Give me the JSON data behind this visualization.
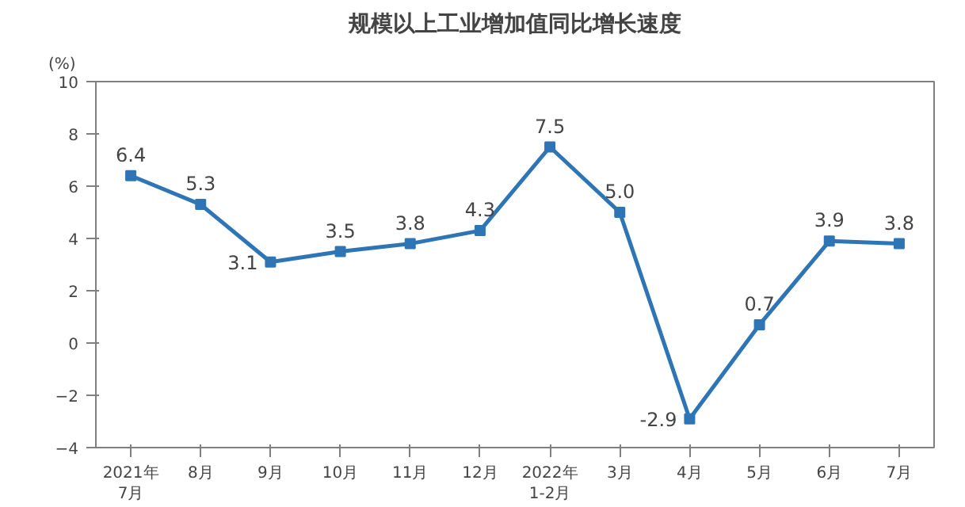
{
  "chart_data": {
    "type": "line",
    "title": "规模以上工业增加值同比增长速度",
    "ylabel": "(%)",
    "categories": [
      "2021年\n7月",
      "8月",
      "9月",
      "10月",
      "11月",
      "12月",
      "2022年\n1-2月",
      "3月",
      "4月",
      "5月",
      "6月",
      "7月"
    ],
    "series": [
      {
        "color": "#2e75b6",
        "values": [
          6.4,
          5.3,
          3.1,
          3.5,
          3.8,
          4.3,
          7.5,
          5.0,
          -2.9,
          0.7,
          3.9,
          3.8
        ]
      }
    ],
    "ylim": [
      -4,
      10
    ],
    "yticks": [
      -4,
      -2,
      0,
      2,
      4,
      6,
      8,
      10
    ],
    "value_labels": [
      "6.4",
      "5.3",
      "3.1",
      "3.5",
      "3.8",
      "4.3",
      "7.5",
      "5.0",
      "-2.9",
      "0.7",
      "3.9",
      "3.8"
    ],
    "marker": "square",
    "line_style": "solid",
    "grid": false
  }
}
